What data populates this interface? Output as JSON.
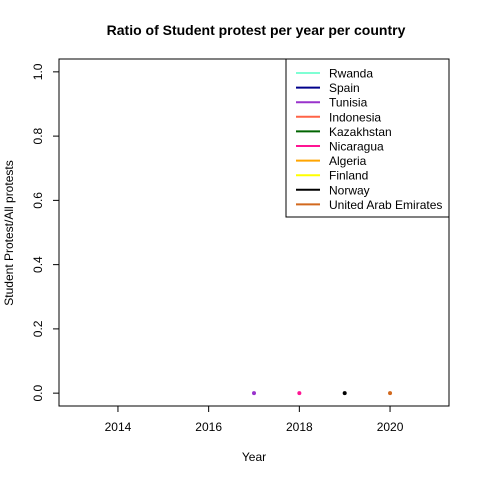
{
  "chart_data": {
    "type": "line",
    "title": "Ratio of Student protest per year per country",
    "xlabel": "Year",
    "ylabel": "Student Protest/All protests",
    "xlim": [
      2012.7,
      2021.3
    ],
    "ylim": [
      -0.04,
      1.04
    ],
    "xticks": [
      2014,
      2016,
      2018,
      2020
    ],
    "yticks": [
      0.0,
      0.2,
      0.4,
      0.6,
      0.8,
      1.0
    ],
    "ytick_labels": [
      "0.0",
      "0.2",
      "0.4",
      "0.6",
      "0.8",
      "1.0"
    ],
    "grid": false,
    "legend_position": "top-right",
    "series": [
      {
        "name": "Rwanda",
        "color": "#7fffd4",
        "points": []
      },
      {
        "name": "Spain",
        "color": "#00008b",
        "points": []
      },
      {
        "name": "Tunisia",
        "color": "#9932cc",
        "points": [
          {
            "x": 2017,
            "y": 0.0
          }
        ]
      },
      {
        "name": "Indonesia",
        "color": "#ff6347",
        "points": []
      },
      {
        "name": "Kazakhstan",
        "color": "#006400",
        "points": []
      },
      {
        "name": "Nicaragua",
        "color": "#ff1493",
        "points": [
          {
            "x": 2018,
            "y": 0.0
          }
        ]
      },
      {
        "name": "Algeria",
        "color": "#ffa500",
        "points": []
      },
      {
        "name": "Finland",
        "color": "#ffff00",
        "points": []
      },
      {
        "name": "Norway",
        "color": "#000000",
        "points": [
          {
            "x": 2019,
            "y": 0.0
          }
        ]
      },
      {
        "name": "United Arab Emirates",
        "color": "#d2691e",
        "points": [
          {
            "x": 2020,
            "y": 0.0
          }
        ]
      }
    ]
  }
}
